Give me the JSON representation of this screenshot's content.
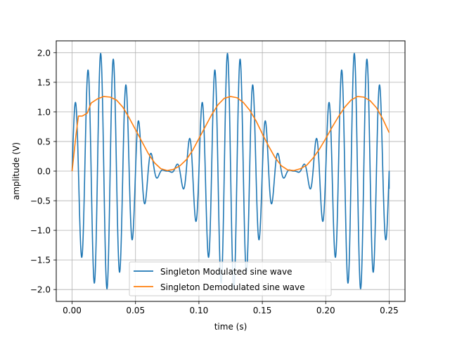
{
  "chart_data": {
    "type": "line",
    "xlabel": "time (s)",
    "ylabel": "amplitude (V)",
    "xlim": [
      -0.0125,
      0.2625
    ],
    "ylim": [
      -2.2,
      2.2
    ],
    "x_ticks": [
      0.0,
      0.05,
      0.1,
      0.15,
      0.2,
      0.25
    ],
    "x_tick_labels": [
      "0.00",
      "0.05",
      "0.10",
      "0.15",
      "0.20",
      "0.25"
    ],
    "y_ticks": [
      -2.0,
      -1.5,
      -1.0,
      -0.5,
      0.0,
      0.5,
      1.0,
      1.5,
      2.0
    ],
    "y_tick_labels": [
      "−2.0",
      "−1.5",
      "−1.0",
      "−0.5",
      "0.0",
      "0.5",
      "1.0",
      "1.5",
      "2.0"
    ],
    "grid": true,
    "legend_position": "lower center",
    "series": [
      {
        "name": "Singleton Modulated sine wave",
        "color": "#1f77b4",
        "x_start": 0.0,
        "x_end": 0.25,
        "carrier_hz": 100,
        "message_hz": 10,
        "peak_amplitude": 2.0,
        "end_value": -0.3
      },
      {
        "name": "Singleton Demodulated sine wave",
        "color": "#ff7f0e",
        "x": [
          0.0,
          0.003,
          0.005,
          0.008,
          0.012,
          0.015,
          0.02,
          0.025,
          0.03,
          0.035,
          0.04,
          0.045,
          0.05,
          0.055,
          0.06,
          0.065,
          0.07,
          0.075,
          0.08,
          0.085,
          0.09,
          0.095,
          0.1,
          0.105,
          0.11,
          0.115,
          0.12,
          0.125,
          0.13,
          0.135,
          0.14,
          0.145,
          0.15,
          0.155,
          0.16,
          0.165,
          0.17,
          0.175,
          0.18,
          0.185,
          0.19,
          0.195,
          0.2,
          0.205,
          0.21,
          0.215,
          0.22,
          0.225,
          0.23,
          0.235,
          0.24,
          0.245,
          0.25
        ],
        "y": [
          0.0,
          0.6,
          0.93,
          0.93,
          0.98,
          1.15,
          1.22,
          1.26,
          1.25,
          1.2,
          1.08,
          0.9,
          0.7,
          0.5,
          0.3,
          0.14,
          0.04,
          0.01,
          0.03,
          0.09,
          0.19,
          0.35,
          0.55,
          0.75,
          0.95,
          1.12,
          1.23,
          1.26,
          1.24,
          1.16,
          1.03,
          0.85,
          0.63,
          0.42,
          0.23,
          0.09,
          0.02,
          0.01,
          0.04,
          0.1,
          0.22,
          0.37,
          0.55,
          0.74,
          0.92,
          1.08,
          1.2,
          1.26,
          1.25,
          1.19,
          1.07,
          0.88,
          0.65
        ]
      }
    ]
  }
}
